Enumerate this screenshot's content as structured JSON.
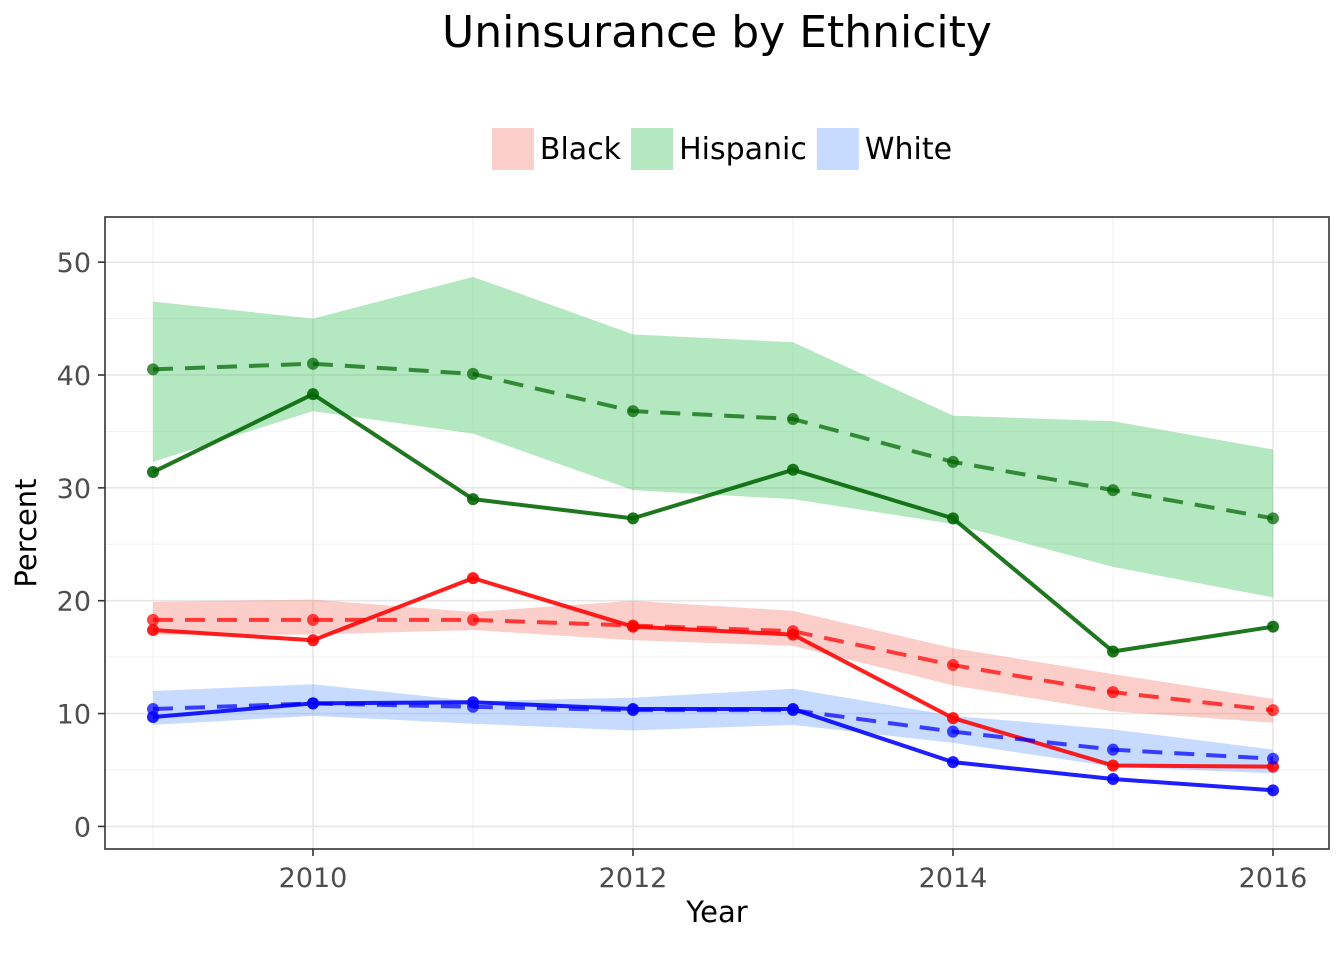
{
  "chart_data": {
    "type": "line",
    "title": "Uninsurance by Ethnicity",
    "xlabel": "Year",
    "ylabel": "Percent",
    "xlim": [
      2008.7,
      2016.35
    ],
    "ylim": [
      -2,
      54
    ],
    "x_ticks": [
      2010,
      2012,
      2014,
      2016
    ],
    "y_ticks": [
      0,
      10,
      20,
      30,
      40,
      50
    ],
    "grid": true,
    "legend_position": "top",
    "x": [
      2009,
      2010,
      2011,
      2012,
      2013,
      2014,
      2015,
      2016
    ],
    "series": [
      {
        "name": "Black",
        "band_color": "#f8766d",
        "line_color": "#ff0000",
        "solid": [
          17.4,
          16.5,
          22.0,
          17.7,
          17.0,
          9.6,
          5.4,
          5.3
        ],
        "dashed": [
          18.3,
          18.3,
          18.3,
          17.8,
          17.3,
          14.3,
          11.9,
          10.3
        ],
        "band_low": [
          17.0,
          17.0,
          17.4,
          16.5,
          16.0,
          12.5,
          10.2,
          9.2
        ],
        "band_high": [
          19.9,
          20.1,
          19.0,
          20.0,
          19.1,
          15.8,
          13.5,
          11.3
        ]
      },
      {
        "name": "Hispanic",
        "band_color": "#2dbf54",
        "line_color": "#006400",
        "solid": [
          31.4,
          38.3,
          29.0,
          27.3,
          31.6,
          27.3,
          15.5,
          17.7
        ],
        "dashed": [
          40.5,
          41.0,
          40.1,
          36.8,
          36.1,
          32.3,
          29.8,
          27.3
        ],
        "band_low": [
          32.3,
          36.8,
          34.8,
          29.8,
          29.0,
          26.8,
          23.0,
          20.3
        ],
        "band_high": [
          46.5,
          45.0,
          48.7,
          43.6,
          42.9,
          36.4,
          35.9,
          33.4
        ]
      },
      {
        "name": "White",
        "band_color": "#619cff",
        "line_color": "#0000ff",
        "solid": [
          9.7,
          10.9,
          11.0,
          10.4,
          10.4,
          5.7,
          4.2,
          3.2
        ],
        "dashed": [
          10.4,
          10.9,
          10.6,
          10.3,
          10.3,
          8.4,
          6.8,
          6.0
        ],
        "band_low": [
          9.0,
          9.8,
          9.1,
          8.5,
          9.0,
          7.4,
          5.3,
          4.7
        ],
        "band_high": [
          12.0,
          12.6,
          11.1,
          11.4,
          12.2,
          9.8,
          8.6,
          6.8
        ]
      }
    ]
  }
}
